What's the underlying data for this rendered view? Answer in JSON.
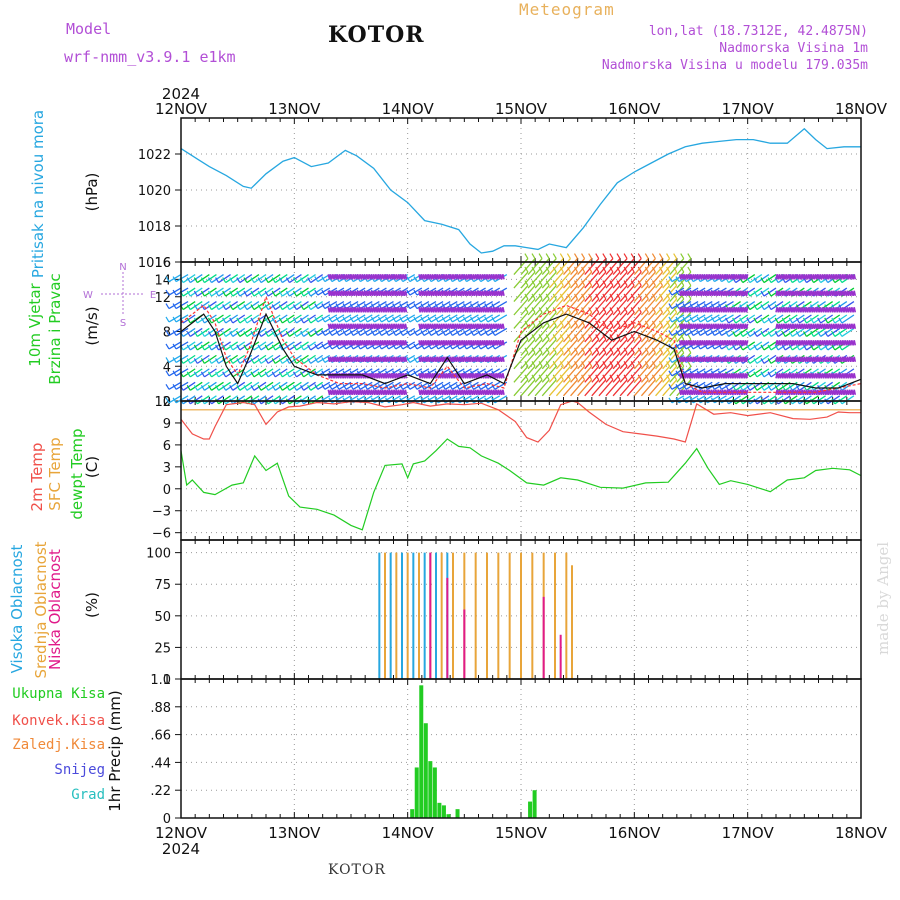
{
  "header": {
    "model_label": "Model",
    "model_name": "wrf-nmm_v3.9.1 e1km",
    "title": "Meteogram",
    "station": "KOTOR",
    "lonlat": "lon,lat (18.7312E, 42.4875N)",
    "elevation": "Nadmorska Visina 1m",
    "model_elevation": "Nadmorska Visina u modelu 179.035m"
  },
  "footer": {
    "station": "KOTOR",
    "watermark": "made by Angel"
  },
  "colors": {
    "pressure": "#27a7e0",
    "temp": "#f0504a",
    "sfc": "#e8a53a",
    "dew": "#22cc22",
    "high_cloud": "#27a7e0",
    "mid_cloud": "#e8a53a",
    "low_cloud": "#e01a8a",
    "precip": "#22cc22",
    "wind_speed": "#111111",
    "gust": "#ff3333",
    "wind_aux": "#9932cc"
  },
  "chart_data": [
    {
      "type": "line",
      "panel": "pressure",
      "ylabel": [
        "Pritisak na nivou mora",
        "(hPa)"
      ],
      "ylim": [
        1016,
        1024
      ],
      "yticks": [
        1016,
        1018,
        1020,
        1022
      ],
      "x_days": [
        "12NOV",
        "13NOV",
        "14NOV",
        "15NOV",
        "16NOV",
        "17NOV",
        "18NOV"
      ],
      "top_year": "2024",
      "bottom_year": "2024",
      "grid": true,
      "series": [
        {
          "x": [
            0,
            0.15,
            0.25,
            0.4,
            0.55,
            0.62,
            0.75,
            0.9,
            1.0,
            1.15,
            1.3,
            1.45,
            1.55,
            1.7,
            1.85,
            2.0,
            2.15,
            2.3,
            2.45,
            2.55,
            2.65,
            2.75,
            2.85,
            2.95,
            3.05,
            3.15,
            3.25,
            3.4,
            3.55,
            3.7,
            3.85,
            4.0,
            4.15,
            4.3,
            4.45,
            4.6,
            4.75,
            4.9,
            5.05,
            5.2,
            5.35,
            5.5,
            5.6,
            5.7,
            5.85,
            6.0
          ],
          "values": [
            1022.3,
            1021.7,
            1021.3,
            1020.8,
            1020.2,
            1020.1,
            1020.9,
            1021.6,
            1021.8,
            1021.3,
            1021.5,
            1022.2,
            1021.9,
            1021.2,
            1020.0,
            1019.3,
            1018.3,
            1018.1,
            1017.8,
            1017.0,
            1016.5,
            1016.6,
            1016.9,
            1016.9,
            1016.8,
            1016.7,
            1017.0,
            1016.8,
            1017.9,
            1019.2,
            1020.4,
            1021.0,
            1021.5,
            1022.0,
            1022.4,
            1022.6,
            1022.7,
            1022.8,
            1022.8,
            1022.6,
            1022.6,
            1023.4,
            1022.8,
            1022.3,
            1022.4,
            1022.4
          ]
        }
      ]
    },
    {
      "type": "line",
      "panel": "wind",
      "ylabel": [
        "10m Vjetar",
        "Brzina i Pravac",
        "(m/s)"
      ],
      "compass": [
        "N",
        "W",
        "E",
        "S"
      ],
      "ylim": [
        0,
        16
      ],
      "yticks": [
        0,
        4,
        8,
        12,
        14,
        16
      ],
      "grid": true,
      "series": [
        {
          "name": "speed",
          "x": [
            0,
            0.2,
            0.3,
            0.4,
            0.5,
            0.6,
            0.75,
            0.9,
            1.0,
            1.2,
            1.4,
            1.6,
            1.8,
            2.0,
            2.2,
            2.35,
            2.5,
            2.7,
            2.85,
            3.0,
            3.2,
            3.4,
            3.6,
            3.8,
            4.0,
            4.2,
            4.35,
            4.45,
            4.6,
            4.8,
            5.0,
            5.2,
            5.4,
            5.6,
            5.8,
            6.0
          ],
          "values": [
            8,
            10,
            8,
            4,
            2,
            5,
            10,
            6,
            4,
            3,
            3,
            3,
            2,
            3,
            2,
            5,
            2,
            3,
            2,
            7,
            9,
            10,
            9,
            7,
            8,
            7,
            6,
            2,
            1.5,
            2,
            2,
            2,
            2,
            1.5,
            1.5,
            2.5
          ]
        },
        {
          "name": "gust",
          "x": [
            0,
            0.2,
            0.3,
            0.4,
            0.5,
            0.6,
            0.75,
            0.9,
            1.0,
            1.2,
            1.4,
            1.6,
            1.8,
            2.0,
            2.2,
            2.35,
            2.5,
            2.7,
            2.85,
            3.0,
            3.2,
            3.4,
            3.6,
            3.8,
            4.0,
            4.2,
            4.35,
            4.45,
            4.6,
            4.8,
            5.0,
            5.2,
            5.4,
            5.6,
            5.8,
            6.0
          ],
          "values": [
            9,
            11,
            9,
            5,
            3,
            6,
            12,
            7,
            5,
            3,
            2,
            2,
            1.5,
            2,
            1.5,
            4,
            1.5,
            2,
            1.5,
            8,
            10,
            11,
            10,
            8,
            9,
            8,
            7,
            2,
            1,
            1,
            1,
            1,
            1,
            1,
            1.5,
            2
          ]
        }
      ]
    },
    {
      "type": "line",
      "panel": "temperature",
      "ylabel": [
        "2m Temp",
        "SFC Temp",
        "dewpt Temp",
        "(C)"
      ],
      "ylim": [
        -7,
        12
      ],
      "yticks": [
        -6,
        -3,
        0,
        3,
        6,
        9,
        12
      ],
      "grid": true,
      "series": [
        {
          "name": "2m",
          "x": [
            0,
            0.1,
            0.2,
            0.25,
            0.3,
            0.4,
            0.55,
            0.65,
            0.75,
            0.85,
            0.95,
            1.05,
            1.2,
            1.35,
            1.5,
            1.65,
            1.8,
            1.95,
            2.05,
            2.2,
            2.35,
            2.5,
            2.65,
            2.8,
            2.95,
            3.05,
            3.15,
            3.25,
            3.35,
            3.45,
            3.5,
            3.6,
            3.75,
            3.9,
            4.05,
            4.2,
            4.35,
            4.45,
            4.55,
            4.7,
            4.85,
            5.0,
            5.2,
            5.4,
            5.55,
            5.7,
            5.8,
            5.9,
            6.0
          ],
          "values": [
            9.5,
            7.5,
            6.8,
            6.8,
            8.5,
            11.5,
            11.8,
            11.5,
            8.8,
            10.5,
            11.2,
            11.3,
            11.8,
            11.6,
            11.9,
            11.8,
            11.2,
            11.5,
            11.8,
            11.3,
            11.6,
            11.5,
            11.7,
            10.8,
            9.2,
            7.0,
            6.4,
            8.0,
            11.5,
            12.0,
            11.8,
            10.5,
            8.8,
            7.8,
            7.5,
            7.2,
            6.8,
            6.4,
            11.6,
            10.2,
            10.4,
            10.0,
            10.4,
            9.6,
            9.5,
            9.8,
            10.5,
            10.4,
            10.4
          ]
        },
        {
          "name": "sfc",
          "x": [
            0,
            6
          ],
          "values": [
            10.8,
            10.8
          ]
        },
        {
          "name": "dewpt",
          "x": [
            0,
            0.05,
            0.1,
            0.2,
            0.3,
            0.45,
            0.55,
            0.65,
            0.75,
            0.85,
            0.95,
            1.05,
            1.2,
            1.35,
            1.5,
            1.6,
            1.7,
            1.8,
            1.95,
            2.0,
            2.05,
            2.15,
            2.25,
            2.35,
            2.45,
            2.55,
            2.65,
            2.8,
            2.9,
            3.05,
            3.2,
            3.35,
            3.5,
            3.7,
            3.9,
            4.1,
            4.3,
            4.45,
            4.55,
            4.65,
            4.75,
            4.85,
            5.0,
            5.2,
            5.35,
            5.5,
            5.6,
            5.75,
            5.9,
            6.0
          ],
          "values": [
            5.2,
            0.5,
            1.2,
            -0.5,
            -0.8,
            0.5,
            0.8,
            4.5,
            2.5,
            3.5,
            -1.0,
            -2.5,
            -2.8,
            -3.6,
            -5.0,
            -5.6,
            -0.5,
            3.2,
            3.4,
            1.5,
            3.4,
            3.8,
            5.2,
            6.8,
            5.8,
            5.6,
            4.5,
            3.5,
            2.5,
            0.8,
            0.5,
            1.5,
            1.2,
            0.2,
            0.1,
            0.8,
            0.9,
            3.5,
            5.5,
            2.8,
            0.6,
            1.1,
            0.6,
            -0.4,
            1.2,
            1.5,
            2.5,
            2.8,
            2.6,
            1.8
          ]
        }
      ]
    },
    {
      "type": "bar",
      "panel": "cloud",
      "ylabel": [
        "Visoka Oblacnost",
        "Srednja Oblacnost",
        "Niska Oblacnost",
        "(%)"
      ],
      "ylim": [
        0,
        110
      ],
      "yticks": [
        0,
        25,
        50,
        75,
        100
      ],
      "grid": true,
      "series": [
        {
          "name": "high",
          "x": [
            1.75,
            1.85,
            1.95,
            2.05,
            2.15,
            2.25,
            2.35
          ],
          "values": [
            100,
            100,
            100,
            100,
            100,
            100,
            100
          ]
        },
        {
          "name": "mid",
          "x": [
            1.8,
            1.9,
            2.0,
            2.1,
            2.2,
            2.3,
            2.4,
            2.5,
            2.6,
            2.7,
            2.8,
            2.9,
            3.0,
            3.1,
            3.2,
            3.3,
            3.4,
            3.45
          ],
          "values": [
            100,
            100,
            100,
            100,
            100,
            100,
            100,
            100,
            100,
            100,
            100,
            100,
            100,
            100,
            100,
            100,
            100,
            90
          ]
        },
        {
          "name": "low",
          "x": [
            2.2,
            2.35,
            2.5,
            3.2,
            3.35
          ],
          "values": [
            100,
            80,
            55,
            65,
            35
          ]
        }
      ]
    },
    {
      "type": "bar",
      "panel": "precip",
      "ylabel": [
        "1hr Precip (mm)"
      ],
      "legend": [
        "Ukupna Kisa",
        "Konvek.Kisa",
        "Zaledj.Kisa",
        "Snijeg",
        "Grad"
      ],
      "ylim": [
        0,
        1.1
      ],
      "yticks": [
        0,
        0.22,
        0.44,
        0.66,
        0.88,
        1.1
      ],
      "grid": true,
      "series": [
        {
          "name": "total",
          "x": [
            2.04,
            2.08,
            2.12,
            2.16,
            2.2,
            2.24,
            2.28,
            2.32,
            2.36,
            2.44,
            3.08,
            3.12
          ],
          "values": [
            0.07,
            0.4,
            1.05,
            0.75,
            0.45,
            0.4,
            0.12,
            0.1,
            0.03,
            0.07,
            0.13,
            0.22
          ]
        }
      ]
    }
  ]
}
